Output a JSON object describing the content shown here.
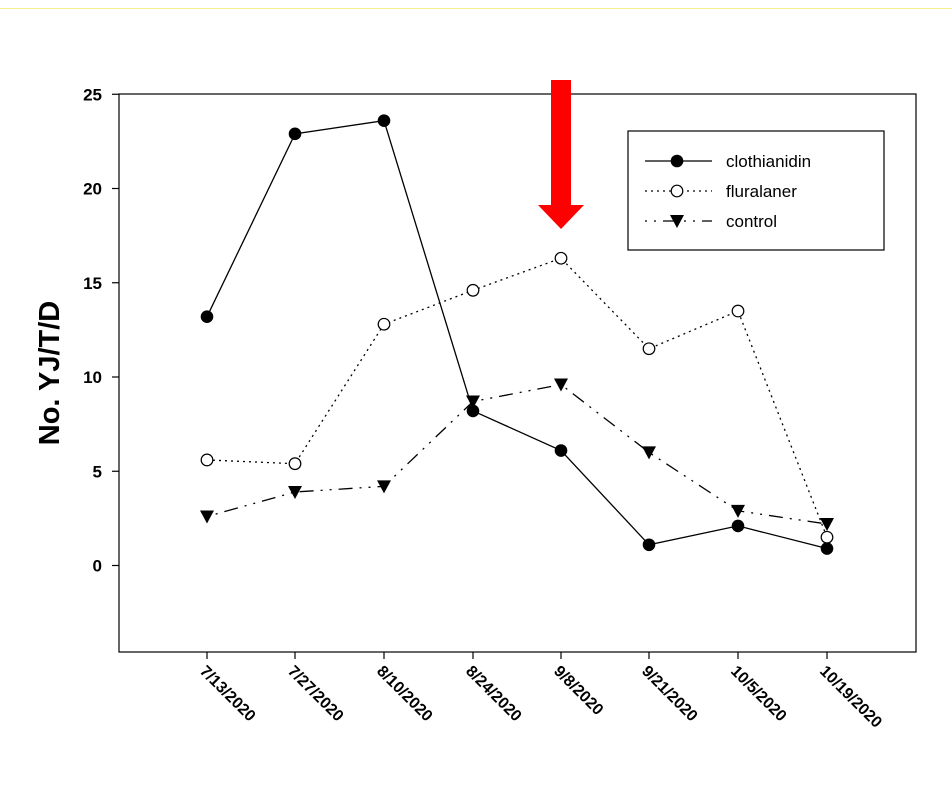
{
  "chart_data": {
    "type": "line",
    "xlabel": "",
    "ylabel": "No. YJ/T/D",
    "ylim": [
      -4.5,
      25
    ],
    "yticks": [
      0,
      5,
      10,
      15,
      20,
      25
    ],
    "categories": [
      "7/13/2020",
      "7/27/2020",
      "8/10/2020",
      "8/24/2020",
      "9/8/2020",
      "9/21/2020",
      "10/5/2020",
      "10/19/2020"
    ],
    "series": [
      {
        "name": "clothianidin",
        "values": [
          13.2,
          22.9,
          23.6,
          8.2,
          6.1,
          1.1,
          2.1,
          0.9
        ],
        "line": "solid",
        "marker": "filled-circle"
      },
      {
        "name": "fluralaner",
        "values": [
          5.6,
          5.4,
          12.8,
          14.6,
          16.3,
          11.5,
          13.5,
          1.5
        ],
        "line": "dotted",
        "marker": "open-circle"
      },
      {
        "name": "control",
        "values": [
          2.6,
          3.9,
          4.2,
          8.7,
          9.6,
          6.0,
          2.9,
          2.2
        ],
        "line": "dash-dot",
        "marker": "filled-triangle-down"
      }
    ],
    "annotations": [
      {
        "type": "arrow",
        "category": "9/8/2020",
        "direction": "down",
        "color": "#ff0000"
      }
    ],
    "legend_position": "top-right",
    "grid": false
  }
}
